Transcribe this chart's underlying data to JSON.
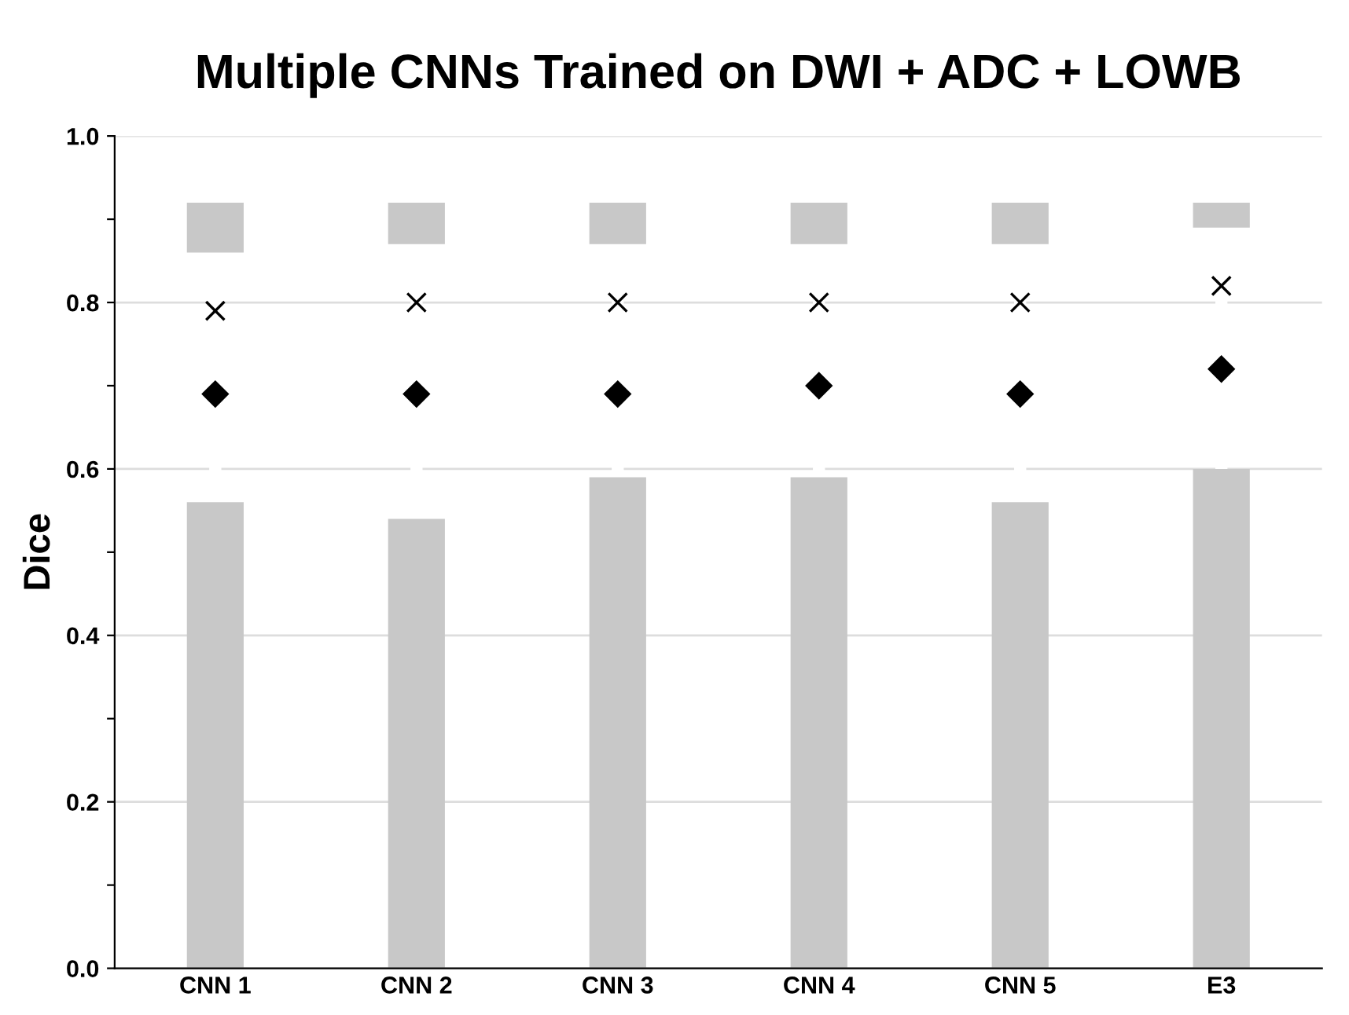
{
  "chart_data": {
    "type": "box",
    "title": "Multiple CNNs Trained on DWI + ADC + LOWB",
    "ylabel": "Dice",
    "categories": [
      "CNN 1",
      "CNN 2",
      "CNN 3",
      "CNN 4",
      "CNN 5",
      "E3"
    ],
    "color": "#ffffff",
    "boxes": [
      {
        "low": 0.0,
        "q1": 0.56,
        "median": 0.79,
        "q3": 0.86,
        "high": 0.92,
        "mean": 0.69
      },
      {
        "low": 0.0,
        "q1": 0.54,
        "median": 0.8,
        "q3": 0.87,
        "high": 0.92,
        "mean": 0.69
      },
      {
        "low": 0.0,
        "q1": 0.59,
        "median": 0.8,
        "q3": 0.87,
        "high": 0.92,
        "mean": 0.69
      },
      {
        "low": 0.0,
        "q1": 0.59,
        "median": 0.8,
        "q3": 0.87,
        "high": 0.92,
        "mean": 0.7
      },
      {
        "low": 0.0,
        "q1": 0.56,
        "median": 0.8,
        "q3": 0.87,
        "high": 0.92,
        "mean": 0.69
      },
      {
        "low": 0.0,
        "q1": 0.6,
        "median": 0.82,
        "q3": 0.89,
        "high": 0.92,
        "mean": 0.72
      }
    ],
    "ylim": [
      0.0,
      1.0
    ],
    "yticks": [
      {
        "value": 0.0,
        "label": "0.0"
      },
      {
        "value": 0.1,
        "label": null
      },
      {
        "value": 0.2,
        "label": "0.2"
      },
      {
        "value": 0.3,
        "label": null
      },
      {
        "value": 0.4,
        "label": "0.4"
      },
      {
        "value": 0.5,
        "label": null
      },
      {
        "value": 0.6,
        "label": "0.6"
      },
      {
        "value": 0.7,
        "label": null
      },
      {
        "value": 0.8,
        "label": "0.8"
      },
      {
        "value": 0.9,
        "label": null
      },
      {
        "value": 1.0,
        "label": "1.0"
      }
    ],
    "grid": "y"
  }
}
